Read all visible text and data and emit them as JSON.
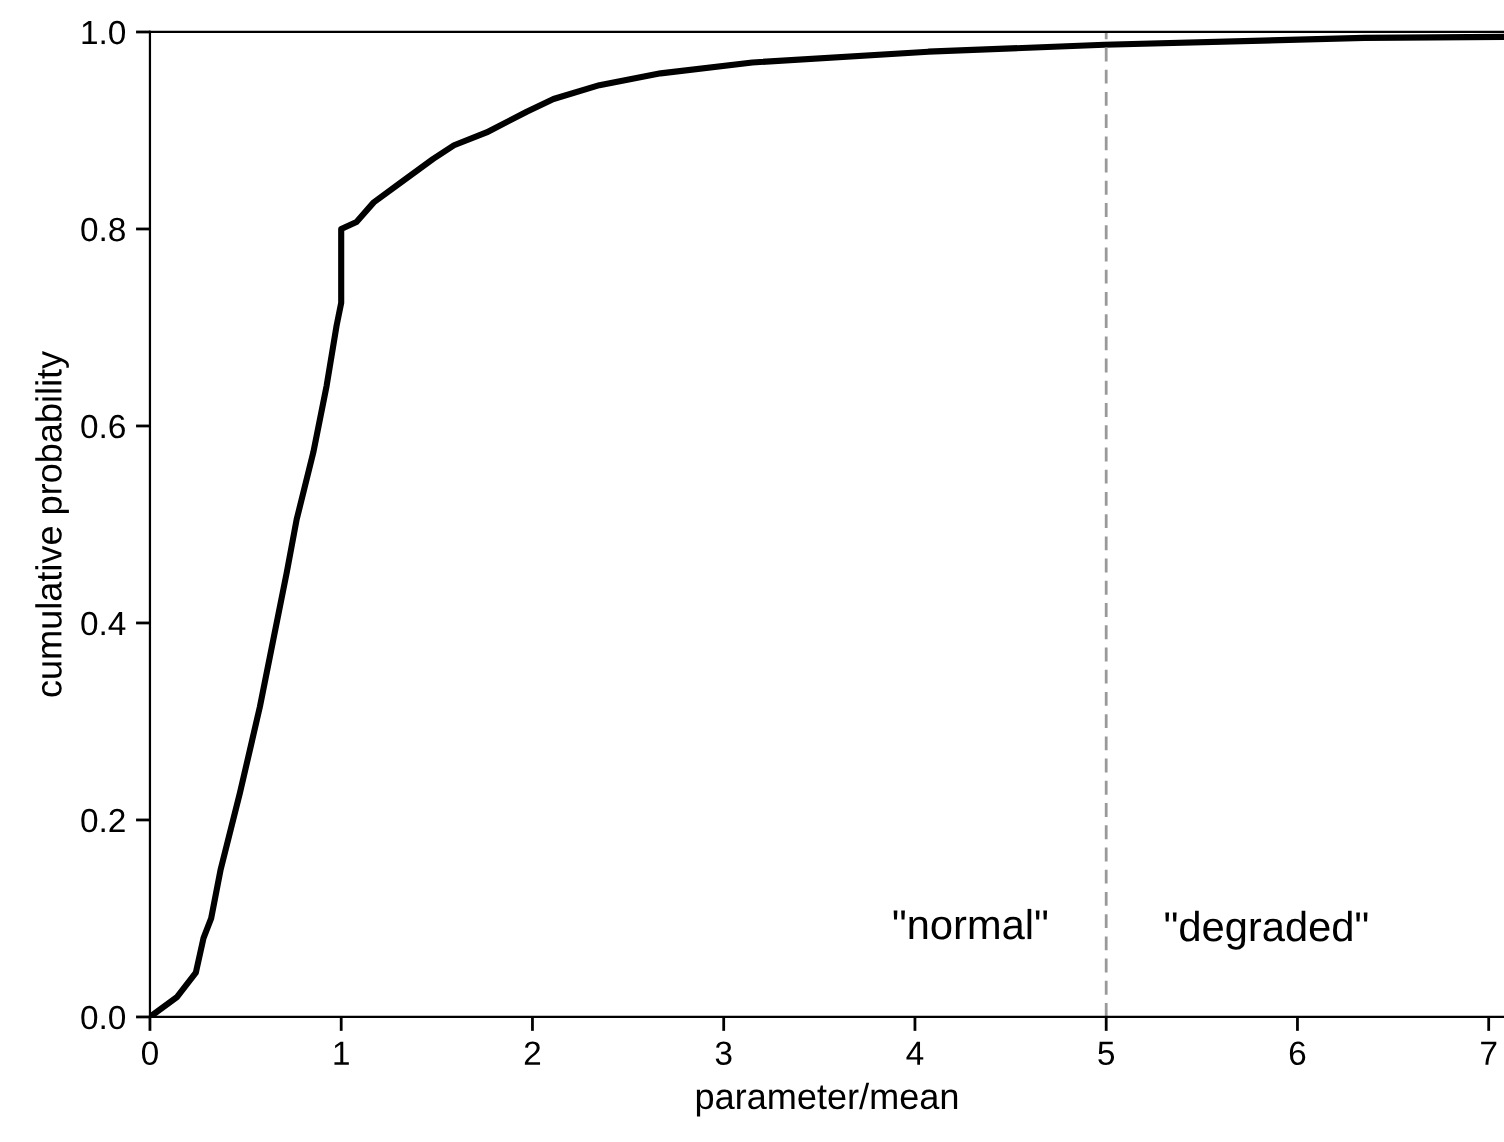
{
  "chart_data": {
    "type": "line",
    "xlabel": "parameter/mean",
    "ylabel": "cumulative probability",
    "xlim": [
      0,
      7.08
    ],
    "ylim": [
      0,
      1.0
    ],
    "xticks": [
      0,
      1,
      2,
      3,
      4,
      5,
      6,
      7
    ],
    "yticks": [
      {
        "value": 0,
        "label": "0.0"
      },
      {
        "value": 0.2,
        "label": "0.2"
      },
      {
        "value": 0.4,
        "label": "0.4"
      },
      {
        "value": 0.6,
        "label": "0.6"
      },
      {
        "value": 0.8,
        "label": "0.8"
      },
      {
        "value": 1.0,
        "label": "1.0"
      }
    ],
    "grid": false,
    "legend": false,
    "marker": "none",
    "line_style": "solid",
    "ref_lines": [
      {
        "axis": "x",
        "value": 5,
        "color": "#999999",
        "line_style": "dashed"
      }
    ],
    "annotations": [
      "\"normal\"",
      "\"degraded\""
    ],
    "series": [
      {
        "color": "#000000",
        "x": [
          0,
          0.14,
          0.24,
          0.28,
          0.32,
          0.37,
          0.47,
          0.575,
          0.645,
          0.715,
          0.767,
          0.854,
          0.924,
          0.976,
          1.0,
          1.0,
          1.08,
          1.17,
          1.31,
          1.48,
          1.59,
          1.76,
          1.97,
          2.11,
          2.35,
          2.67,
          3.15,
          4.07,
          4.99,
          6.35,
          7.08
        ],
        "values": [
          0,
          0.02,
          0.045,
          0.08,
          0.1,
          0.15,
          0.227,
          0.315,
          0.383,
          0.451,
          0.505,
          0.573,
          0.641,
          0.702,
          0.725,
          0.8,
          0.807,
          0.827,
          0.847,
          0.871,
          0.885,
          0.898,
          0.919,
          0.932,
          0.946,
          0.958,
          0.969,
          0.98,
          0.987,
          0.994,
          0.995
        ]
      }
    ]
  }
}
